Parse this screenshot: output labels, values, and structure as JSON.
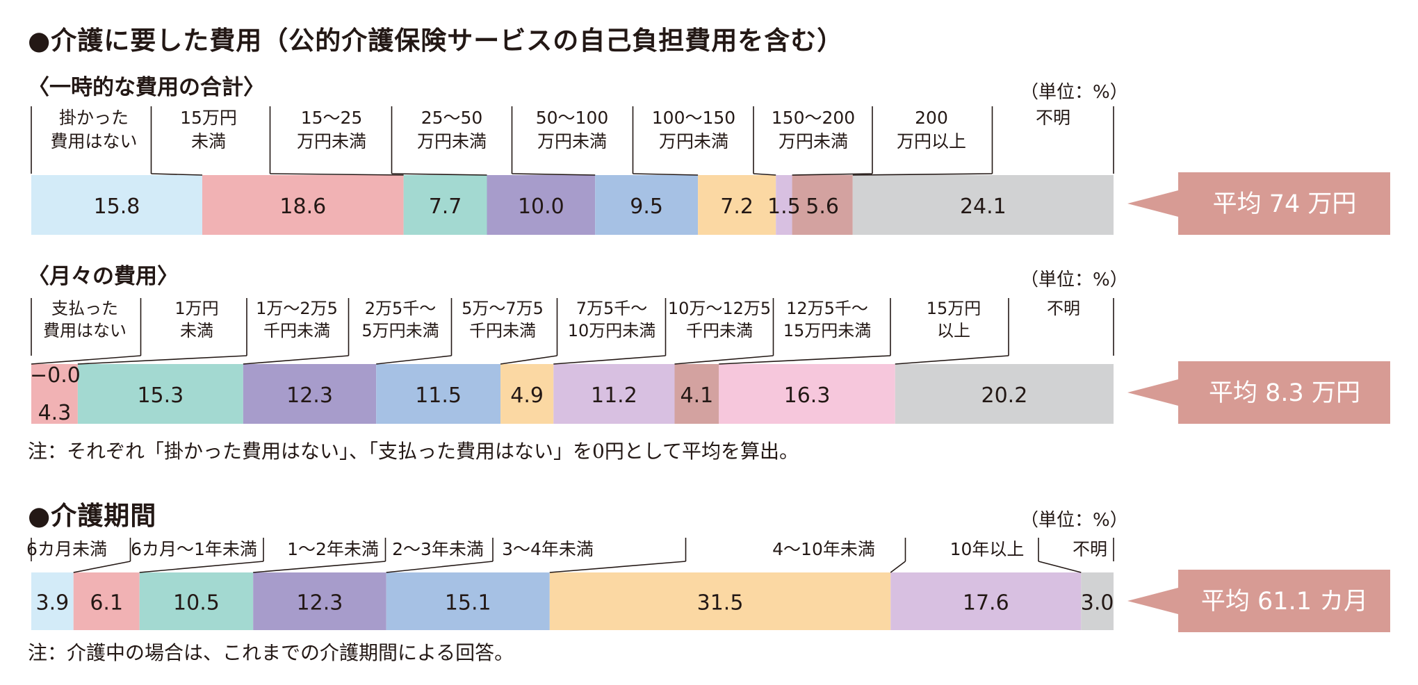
{
  "section1": {
    "title": "●介護に要した費用（公的介護保険サービスの自己負担費用を含む）",
    "one_time": {
      "subtitle": "〈一時的な費用の合計〉",
      "unit": "（単位：%）",
      "average": "平均 74 万円"
    },
    "monthly": {
      "subtitle": "〈月々の費用〉",
      "unit": "（単位：%）",
      "average": "平均 8.3 万円"
    },
    "note": "注：それぞれ「掛かった費用はない」、「支払った費用はない」を0円として平均を算出。"
  },
  "section2": {
    "title": "●介護期間",
    "unit": "（単位：%）",
    "average": "平均 61.1 カ月",
    "note": "注：介護中の場合は、これまでの介護期間による回答。"
  },
  "chart_data": [
    {
      "type": "bar",
      "orientation": "horizontal-stacked",
      "title": "〈一時的な費用の合計〉",
      "unit": "%",
      "categories": [
        "掛かった費用はない",
        "15万円未満",
        "15～25万円未満",
        "25～50万円未満",
        "50～100万円未満",
        "100～150万円未満",
        "150～200万円未満",
        "200万円以上",
        "不明"
      ],
      "values": [
        15.8,
        18.6,
        7.7,
        10.0,
        9.5,
        7.2,
        1.5,
        5.6,
        24.1
      ],
      "colors": [
        "#d3ebf8",
        "#f1b2b4",
        "#a3d9d1",
        "#a79ccb",
        "#a6c1e4",
        "#fbd8a3",
        "#d8c0e1",
        "#d3a2a0",
        "#d1d2d3"
      ],
      "average": "平均 74 万円"
    },
    {
      "type": "bar",
      "orientation": "horizontal-stacked",
      "title": "〈月々の費用〉",
      "unit": "%",
      "categories": [
        "支払った費用はない",
        "1万円未満",
        "1万～2万5千円未満",
        "2万5千～5万円未満",
        "5万～7万5千円未満",
        "7万5千～10万円未満",
        "10万～12万5千円未満",
        "12万5千～15万円未満",
        "15万円以上",
        "不明"
      ],
      "values": [
        0.0,
        4.3,
        15.3,
        12.3,
        11.5,
        4.9,
        11.2,
        4.1,
        16.3,
        20.2
      ],
      "value_labels": [
        "−0.0",
        "4.3",
        "15.3",
        "12.3",
        "11.5",
        "4.9",
        "11.2",
        "4.1",
        "16.3",
        "20.2"
      ],
      "colors": [
        "#d3ebf8",
        "#f1b2b4",
        "#a3d9d1",
        "#a79ccb",
        "#a6c1e4",
        "#fbd8a3",
        "#d8c0e1",
        "#d3a2a0",
        "#f6c7dc",
        "#d1d2d3"
      ],
      "average": "平均 8.3 万円"
    },
    {
      "type": "bar",
      "orientation": "horizontal-stacked",
      "title": "●介護期間",
      "unit": "%",
      "categories": [
        "6カ月未満",
        "6カ月～1年未満",
        "1～2年未満",
        "2～3年未満",
        "3～4年未満",
        "4～10年未満",
        "10年以上",
        "不明"
      ],
      "values": [
        3.9,
        6.1,
        10.5,
        12.3,
        15.1,
        31.5,
        17.6,
        3.0
      ],
      "colors": [
        "#d3ebf8",
        "#f1b2b4",
        "#a3d9d1",
        "#a79ccb",
        "#a6c1e4",
        "#fbd8a3",
        "#d8c0e1",
        "#d1d2d3"
      ],
      "average": "平均 61.1 カ月"
    }
  ]
}
